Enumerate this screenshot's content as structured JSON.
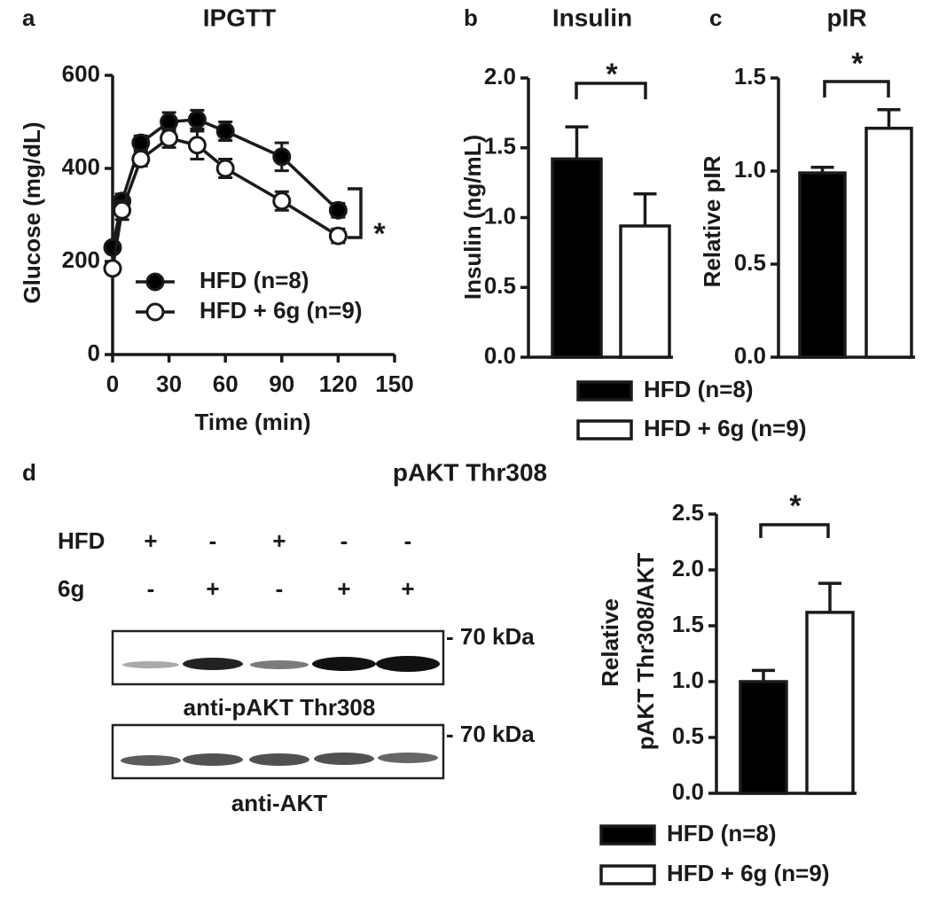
{
  "chart_data": [
    {
      "type": "line",
      "panel": "a",
      "title": "IPGTT",
      "xlabel": "Time (min)",
      "ylabel": "Glucose (mg/dL)",
      "x": [
        0,
        5,
        15,
        30,
        45,
        60,
        90,
        120
      ],
      "series": [
        {
          "name": "HFD (n=8)",
          "color": "#000000",
          "values": [
            230,
            330,
            455,
            500,
            505,
            480,
            425,
            310
          ],
          "errors": [
            10,
            15,
            15,
            20,
            20,
            20,
            30,
            15
          ]
        },
        {
          "name": "HFD + 6g  (n=9)",
          "color": "#ffffff",
          "values": [
            185,
            310,
            420,
            465,
            450,
            400,
            330,
            255
          ],
          "errors": [
            10,
            20,
            15,
            20,
            30,
            20,
            20,
            15
          ]
        }
      ],
      "xlim": [
        0,
        150
      ],
      "xticks": [
        0,
        30,
        60,
        90,
        120,
        150
      ],
      "ylim": [
        0,
        600
      ],
      "yticks": [
        0,
        200,
        400,
        600
      ],
      "annotation": "*"
    },
    {
      "type": "bar",
      "panel": "b",
      "title": "Insulin",
      "ylabel": "Insulin (ng/mL)",
      "series": [
        {
          "name": "HFD (n=8)",
          "color": "#000000",
          "values": [
            1.42
          ],
          "errors": [
            0.23
          ]
        },
        {
          "name": "HFD + 6g (n=9)",
          "color": "#ffffff",
          "values": [
            0.94
          ],
          "errors": [
            0.23
          ]
        }
      ],
      "ylim": [
        0,
        2
      ],
      "yticks": [
        {
          "value": 0,
          "label": "0.0"
        },
        {
          "value": 0.5,
          "label": "0.5"
        },
        {
          "value": 1,
          "label": "1.0"
        },
        {
          "value": 1.5,
          "label": "1.5"
        },
        {
          "value": 2,
          "label": "2.0"
        }
      ],
      "annotation": "*"
    },
    {
      "type": "bar",
      "panel": "c",
      "title": "pIR",
      "ylabel": "Relative pIR",
      "series": [
        {
          "color": "#000000",
          "values": [
            0.99
          ],
          "errors": [
            0.03
          ]
        },
        {
          "color": "#ffffff",
          "values": [
            1.23
          ],
          "errors": [
            0.1
          ]
        }
      ],
      "ylim": [
        0,
        1.5
      ],
      "yticks": [
        {
          "value": 0,
          "label": "0.0"
        },
        {
          "value": 0.5,
          "label": "0.5"
        },
        {
          "value": 1,
          "label": "1.0"
        },
        {
          "value": 1.5,
          "label": "1.5"
        }
      ],
      "annotation": "*"
    },
    {
      "type": "bar",
      "ylabel": [
        "Relative",
        "pAKT Thr308/AKT"
      ],
      "series": [
        {
          "name": "HFD (n=8)",
          "color": "#000000",
          "values": [
            1.0
          ],
          "errors": [
            0.1
          ]
        },
        {
          "name": "HFD + 6g (n=9)",
          "color": "#ffffff",
          "values": [
            1.62
          ],
          "errors": [
            0.26
          ]
        }
      ],
      "ylim": [
        0,
        2.5
      ],
      "yticks": [
        {
          "value": 0,
          "label": "0.0"
        },
        {
          "value": 0.5,
          "label": "0.5"
        },
        {
          "value": 1,
          "label": "1.0"
        },
        {
          "value": 1.5,
          "label": "1.5"
        },
        {
          "value": 2,
          "label": "2.0"
        },
        {
          "value": 2.5,
          "label": "2.5"
        }
      ],
      "annotation": "*"
    }
  ],
  "blot": {
    "panel": "d",
    "title": "pAKT Thr308",
    "rows": [
      {
        "label": "HFD",
        "signs": [
          "+",
          "-",
          "+",
          "-",
          "-"
        ]
      },
      {
        "label": "6g",
        "signs": [
          "-",
          "+",
          "-",
          "+",
          "+"
        ]
      }
    ],
    "marker": "- 70 kDa",
    "labels": [
      "anti-pAKT Thr308",
      "anti-AKT"
    ]
  }
}
